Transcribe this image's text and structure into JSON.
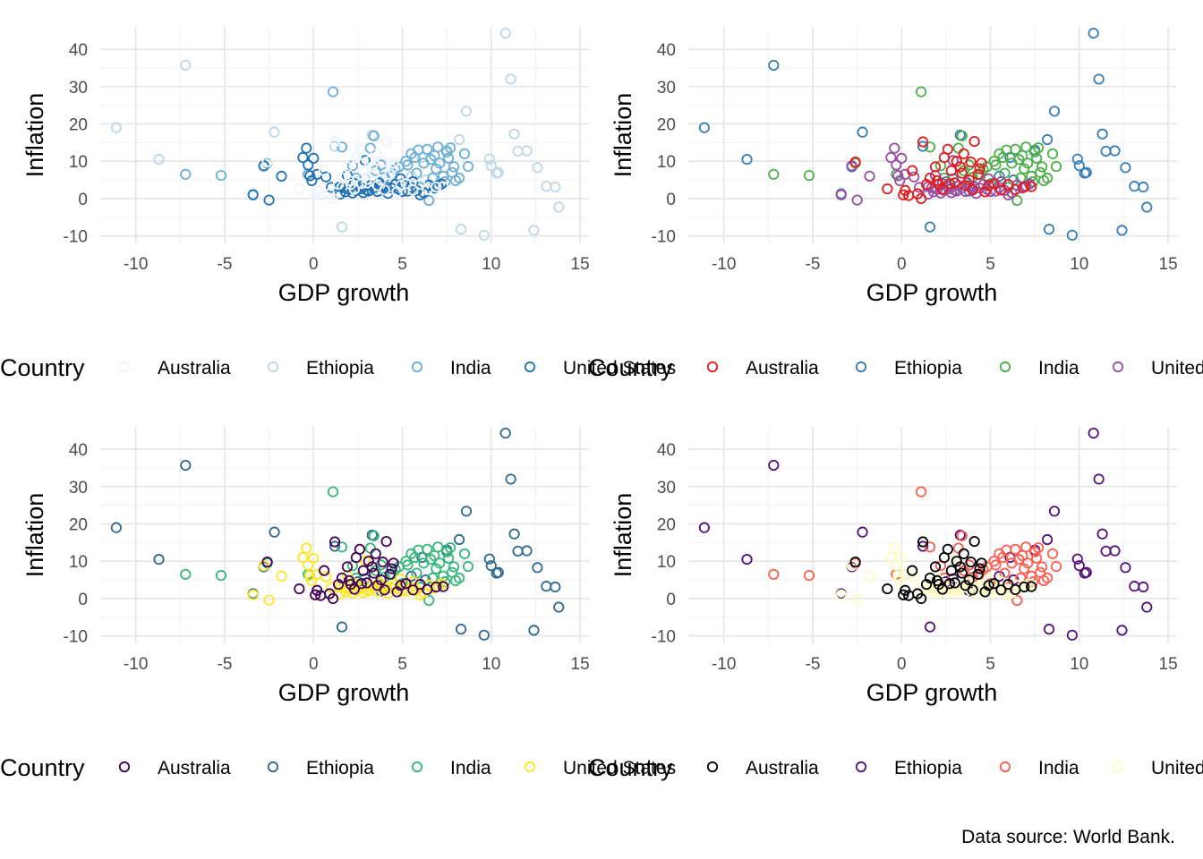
{
  "caption": "Data source: World Bank.",
  "legend_title": "Country",
  "chart_data": [
    {
      "type": "scatter",
      "panel": "top-left",
      "xlabel": "GDP growth",
      "ylabel": "Inflation",
      "xlim": [
        -12,
        15.5
      ],
      "ylim": [
        -12,
        46
      ],
      "xticks": [
        -10,
        -5,
        0,
        5,
        10,
        15
      ],
      "yticks": [
        -10,
        0,
        10,
        20,
        30,
        40
      ],
      "legend_position": "bottom",
      "series": [
        {
          "name": "Australia",
          "color": "#eff3ff"
        },
        {
          "name": "Ethiopia",
          "color": "#bdd7e7"
        },
        {
          "name": "India",
          "color": "#6baed6"
        },
        {
          "name": "United States",
          "color": "#2171b5"
        }
      ]
    },
    {
      "type": "scatter",
      "panel": "top-right",
      "xlabel": "GDP growth",
      "ylabel": "Inflation",
      "xlim": [
        -12,
        15.5
      ],
      "ylim": [
        -12,
        46
      ],
      "xticks": [
        -10,
        -5,
        0,
        5,
        10,
        15
      ],
      "yticks": [
        -10,
        0,
        10,
        20,
        30,
        40
      ],
      "legend_position": "bottom",
      "series": [
        {
          "name": "Australia",
          "color": "#e41a1c"
        },
        {
          "name": "Ethiopia",
          "color": "#377eb8"
        },
        {
          "name": "India",
          "color": "#4daf4a"
        },
        {
          "name": "United States",
          "color": "#984ea3"
        }
      ]
    },
    {
      "type": "scatter",
      "panel": "bottom-left",
      "xlabel": "GDP growth",
      "ylabel": "Inflation",
      "xlim": [
        -12,
        15.5
      ],
      "ylim": [
        -12,
        46
      ],
      "xticks": [
        -10,
        -5,
        0,
        5,
        10,
        15
      ],
      "yticks": [
        -10,
        0,
        10,
        20,
        30,
        40
      ],
      "legend_position": "bottom",
      "series": [
        {
          "name": "Australia",
          "color": "#440154"
        },
        {
          "name": "Ethiopia",
          "color": "#31688e"
        },
        {
          "name": "India",
          "color": "#35b779"
        },
        {
          "name": "United States",
          "color": "#fde725"
        }
      ]
    },
    {
      "type": "scatter",
      "panel": "bottom-right",
      "xlabel": "GDP growth",
      "ylabel": "Inflation",
      "xlim": [
        -12,
        15.5
      ],
      "ylim": [
        -12,
        46
      ],
      "xticks": [
        -10,
        -5,
        0,
        5,
        10,
        15
      ],
      "yticks": [
        -10,
        0,
        10,
        20,
        30,
        40
      ],
      "legend_position": "bottom",
      "series": [
        {
          "name": "Australia",
          "color": "#000004"
        },
        {
          "name": "Ethiopia",
          "color": "#51127c"
        },
        {
          "name": "India",
          "color": "#fb5e50"
        },
        {
          "name": "United States",
          "color": "#fcfdbf"
        }
      ]
    }
  ],
  "points": {
    "Ethiopia": [
      [
        -11.1,
        19
      ],
      [
        -8.7,
        10.5
      ],
      [
        -7.2,
        35.7
      ],
      [
        -2.8,
        8.5
      ],
      [
        -2.2,
        17.8
      ],
      [
        -3.4,
        1.3
      ],
      [
        1.2,
        14.0
      ],
      [
        1.6,
        -7.6
      ],
      [
        2.5,
        4.5
      ],
      [
        3.3,
        17.0
      ],
      [
        6.1,
        11.0
      ],
      [
        8.2,
        15.8
      ],
      [
        8.3,
        -8.2
      ],
      [
        9.6,
        -9.8
      ],
      [
        10.0,
        8.8
      ],
      [
        10.3,
        6.8
      ],
      [
        10.8,
        44.3
      ],
      [
        11.1,
        32.0
      ],
      [
        11.3,
        17.3
      ],
      [
        11.5,
        12.7
      ],
      [
        12.0,
        12.8
      ],
      [
        12.4,
        -8.5
      ],
      [
        12.6,
        8.3
      ],
      [
        13.1,
        3.3
      ],
      [
        13.6,
        3.1
      ],
      [
        13.8,
        -2.3
      ],
      [
        8.6,
        23.4
      ],
      [
        10.4,
        7.0
      ],
      [
        7.5,
        13.0
      ],
      [
        9.9,
        10.6
      ],
      [
        5.5,
        6.0
      ],
      [
        6.3,
        5.0
      ],
      [
        3.8,
        2.0
      ],
      [
        2.9,
        5.3
      ]
    ],
    "India": [
      [
        -7.2,
        6.5
      ],
      [
        -5.2,
        6.2
      ],
      [
        -2.6,
        9.5
      ],
      [
        -0.3,
        6.5
      ],
      [
        1.1,
        28.6
      ],
      [
        1.6,
        13.8
      ],
      [
        2.4,
        5.5
      ],
      [
        3.2,
        13.5
      ],
      [
        3.4,
        16.8
      ],
      [
        3.8,
        9.0
      ],
      [
        4.0,
        5.7
      ],
      [
        4.4,
        6.5
      ],
      [
        4.8,
        8.5
      ],
      [
        5.2,
        10.0
      ],
      [
        5.5,
        12.0
      ],
      [
        5.7,
        11.0
      ],
      [
        5.9,
        13.0
      ],
      [
        6.2,
        9.5
      ],
      [
        6.4,
        13.2
      ],
      [
        6.6,
        10.5
      ],
      [
        6.9,
        8.0
      ],
      [
        7.1,
        9.5
      ],
      [
        7.3,
        6.0
      ],
      [
        7.5,
        12.5
      ],
      [
        7.7,
        13.6
      ],
      [
        7.9,
        8.5
      ],
      [
        8.0,
        4.8
      ],
      [
        8.2,
        5.5
      ],
      [
        8.5,
        12.0
      ],
      [
        8.7,
        8.6
      ],
      [
        7.8,
        7.0
      ],
      [
        6.8,
        11.5
      ],
      [
        5.0,
        4.0
      ],
      [
        6.0,
        3.0
      ],
      [
        6.5,
        -0.5
      ],
      [
        7.4,
        4.5
      ],
      [
        7.6,
        10.8
      ],
      [
        3.5,
        7.5
      ],
      [
        4.6,
        7.8
      ],
      [
        5.3,
        9.0
      ],
      [
        2.2,
        8.8
      ],
      [
        7.0,
        13.8
      ],
      [
        6.7,
        5.5
      ],
      [
        5.8,
        6.8
      ]
    ],
    "UnitedStates": [
      [
        -0.6,
        11
      ],
      [
        -0.4,
        13.5
      ],
      [
        -0.3,
        9
      ],
      [
        -0.2,
        6.1
      ],
      [
        0.0,
        10.8
      ],
      [
        0.2,
        6.5
      ],
      [
        1.0,
        3.0
      ],
      [
        1.5,
        3.2
      ],
      [
        1.8,
        1.8
      ],
      [
        2.0,
        2.5
      ],
      [
        2.2,
        1.5
      ],
      [
        2.4,
        2.2
      ],
      [
        2.6,
        3.2
      ],
      [
        2.8,
        1.6
      ],
      [
        3.0,
        2.3
      ],
      [
        3.2,
        3.5
      ],
      [
        3.4,
        2.9
      ],
      [
        3.6,
        1.9
      ],
      [
        3.8,
        3.3
      ],
      [
        4.0,
        2.6
      ],
      [
        4.2,
        1.4
      ],
      [
        4.4,
        2.8
      ],
      [
        4.6,
        3.8
      ],
      [
        4.8,
        2.5
      ],
      [
        5.0,
        1.9
      ],
      [
        5.3,
        2.0
      ],
      [
        5.5,
        3.0
      ],
      [
        5.8,
        2.2
      ],
      [
        6.2,
        1.6
      ],
      [
        6.5,
        3.6
      ],
      [
        6.8,
        2.8
      ],
      [
        7.0,
        3.4
      ],
      [
        7.2,
        3.9
      ],
      [
        -2.5,
        -0.4
      ],
      [
        -3.4,
        1.0
      ],
      [
        -2.8,
        8.8
      ],
      [
        1.9,
        6.2
      ],
      [
        2.9,
        10.2
      ],
      [
        1.5,
        1.2
      ],
      [
        2.3,
        4.0
      ],
      [
        3.7,
        4.2
      ],
      [
        4.1,
        3.1
      ],
      [
        3.1,
        2.0
      ],
      [
        5.6,
        4.5
      ],
      [
        4.9,
        5.3
      ],
      [
        2.7,
        2.6
      ],
      [
        1.7,
        2.9
      ],
      [
        6.0,
        1.0
      ],
      [
        0.7,
        5.8
      ],
      [
        -1.8,
        6.0
      ],
      [
        -0.1,
        4.8
      ]
    ],
    "Australia": [
      [
        -2.6,
        9.8
      ],
      [
        -0.8,
        2.6
      ],
      [
        0.1,
        1.0
      ],
      [
        0.4,
        0.8
      ],
      [
        0.9,
        1.3
      ],
      [
        1.1,
        0.0
      ],
      [
        1.2,
        15.2
      ],
      [
        1.6,
        5.5
      ],
      [
        1.9,
        8.5
      ],
      [
        2.1,
        3.8
      ],
      [
        2.3,
        2.5
      ],
      [
        2.6,
        13.2
      ],
      [
        2.8,
        7.5
      ],
      [
        3.0,
        4.2
      ],
      [
        3.1,
        10.0
      ],
      [
        3.3,
        8.5
      ],
      [
        3.5,
        12.0
      ],
      [
        3.6,
        3.5
      ],
      [
        3.8,
        5.0
      ],
      [
        4.1,
        15.3
      ],
      [
        4.3,
        6.5
      ],
      [
        4.5,
        9.5
      ],
      [
        4.7,
        1.8
      ],
      [
        4.9,
        3.5
      ],
      [
        5.2,
        4.0
      ],
      [
        5.6,
        2.3
      ],
      [
        6.0,
        3.8
      ],
      [
        6.4,
        2.4
      ],
      [
        6.9,
        3.1
      ],
      [
        7.3,
        3.2
      ],
      [
        0.6,
        7.5
      ],
      [
        2.4,
        11.0
      ],
      [
        3.9,
        9.8
      ],
      [
        4.0,
        2.3
      ],
      [
        2.7,
        4.0
      ],
      [
        1.4,
        3.8
      ],
      [
        3.4,
        6.8
      ],
      [
        2.0,
        4.8
      ],
      [
        4.4,
        8.0
      ],
      [
        0.2,
        2.2
      ]
    ]
  }
}
